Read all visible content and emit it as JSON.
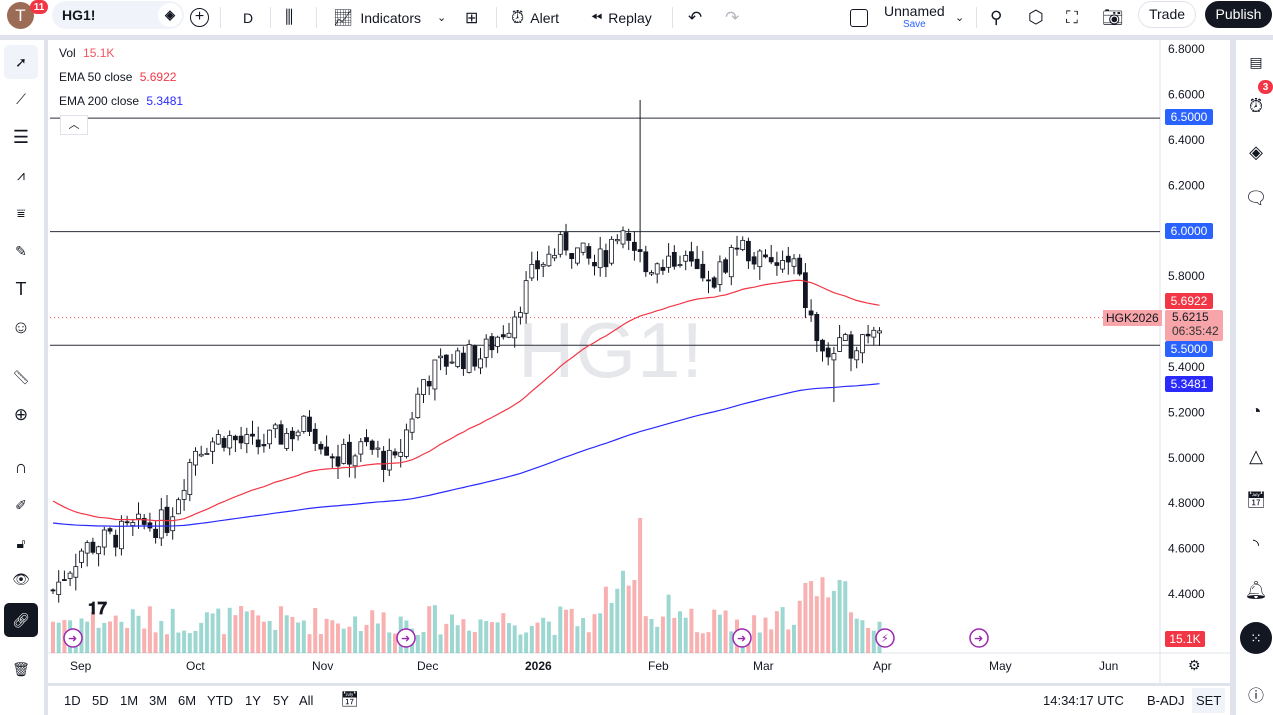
{
  "topbar": {
    "avatar_letter": "T",
    "notifications": "11",
    "symbol": "HG1!",
    "interval": "D",
    "indicators": "Indicators",
    "alert": "Alert",
    "replay": "Replay",
    "layout_name": "Unnamed",
    "layout_save": "Save",
    "trade": "Trade",
    "publish": "Publish"
  },
  "legend": {
    "vol_label": "Vol",
    "vol_value": "15.1K",
    "ema50_label": "EMA 50 close",
    "ema50_value": "5.6922",
    "ema200_label": "EMA 200 close",
    "ema200_value": "5.3481"
  },
  "watermark": "HG1!",
  "price_axis": {
    "ticks": [
      "6.8000",
      "6.6000",
      "6.4000",
      "6.2000",
      "5.8000",
      "5.4000",
      "5.2000",
      "5.0000",
      "4.8000",
      "4.6000",
      "4.4000"
    ],
    "tags": {
      "line_650": "6.5000",
      "line_600": "6.0000",
      "ema50": "5.6922",
      "last": "5.6215",
      "countdown": "06:35:42",
      "contract": "HGK2026",
      "line_550": "5.5000",
      "ema200": "5.3481",
      "volume": "15.1K"
    }
  },
  "time_axis": [
    "Sep",
    "Oct",
    "Nov",
    "Dec",
    "2026",
    "Feb",
    "Mar",
    "Apr",
    "May",
    "Jun"
  ],
  "bottombar": {
    "ranges": [
      "1D",
      "5D",
      "1M",
      "3M",
      "6M",
      "YTD",
      "1Y",
      "5Y",
      "All"
    ],
    "clock": "14:34:17 UTC",
    "adj": "B-ADJ",
    "session": "SET"
  },
  "right_sidebar": {
    "alerts_badge": "3"
  },
  "colors": {
    "up": "#26a69a",
    "down": "#ef5350",
    "ema50": "#f23645",
    "ema200": "#2a2aff",
    "hline_blue": "#2962ff"
  },
  "chart_data": {
    "type": "candlestick",
    "symbol": "HG1!",
    "price_range": [
      4.4,
      6.8
    ],
    "horizontal_lines": [
      6.5,
      6.0,
      5.5
    ],
    "last_price": 5.6215,
    "weekly_closes": [
      4.42,
      4.6,
      4.65,
      4.7,
      4.72,
      5.05,
      5.1,
      5.05,
      5.1,
      5.15,
      5.0,
      5.05,
      4.97,
      5.35,
      5.45,
      5.45,
      5.6,
      5.85,
      5.95,
      5.85,
      5.95,
      5.85,
      5.9,
      5.75,
      5.95,
      5.85,
      5.85,
      5.45,
      5.5,
      5.62
    ],
    "wick_extremes": [
      {
        "bar": 103,
        "high": 6.58
      },
      {
        "bar": 137,
        "low": 5.25
      }
    ],
    "ema50_seed": 4.83,
    "ema200_seed": 4.72
  }
}
